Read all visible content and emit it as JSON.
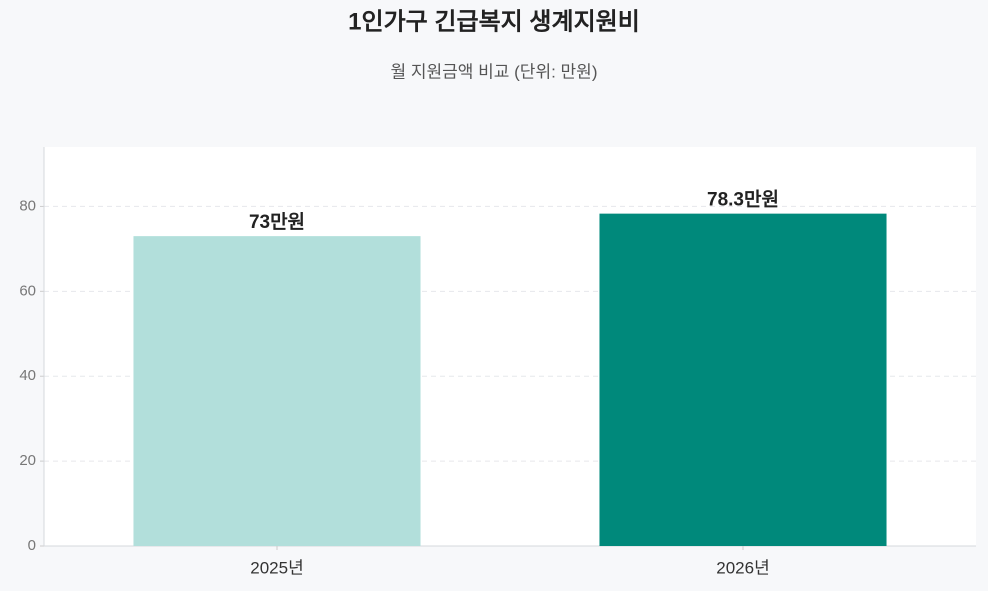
{
  "chart_data": {
    "type": "bar",
    "title": "1인가구 긴급복지 생계지원비",
    "subtitle": "월 지원금액 비교 (단위: 만원)",
    "categories": [
      "2025년",
      "2026년"
    ],
    "values": [
      73,
      78.3
    ],
    "value_labels": [
      "73만원",
      "78.3만원"
    ],
    "colors": [
      "#b2dfdb",
      "#00897b"
    ],
    "ylim": [
      0,
      94
    ],
    "yticks": [
      0,
      20,
      40,
      60,
      80
    ],
    "grid": true
  }
}
